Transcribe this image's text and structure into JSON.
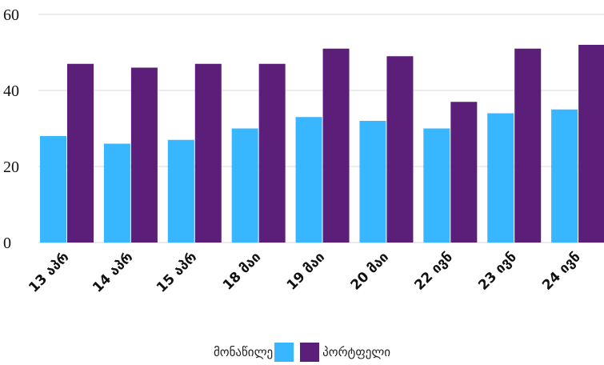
{
  "chart_data": {
    "type": "bar",
    "categories": [
      "13 აპრ",
      "14 აპრ",
      "15 აპრ",
      "18 მაი",
      "19 მაი",
      "20 მაი",
      "22 ივნ",
      "23 ივნ",
      "24 ივნ"
    ],
    "series": [
      {
        "name": "მონაწილე",
        "color": "#38b6ff",
        "values": [
          28,
          26,
          27,
          30,
          33,
          32,
          30,
          34,
          35
        ]
      },
      {
        "name": "პორტფელი",
        "color": "#5b1f7a",
        "values": [
          47,
          46,
          47,
          47,
          51,
          49,
          37,
          51,
          52
        ]
      }
    ],
    "ylim": [
      0,
      60
    ],
    "yticks": [
      0,
      20,
      40,
      60
    ],
    "grid": true,
    "legend": "bottom"
  }
}
